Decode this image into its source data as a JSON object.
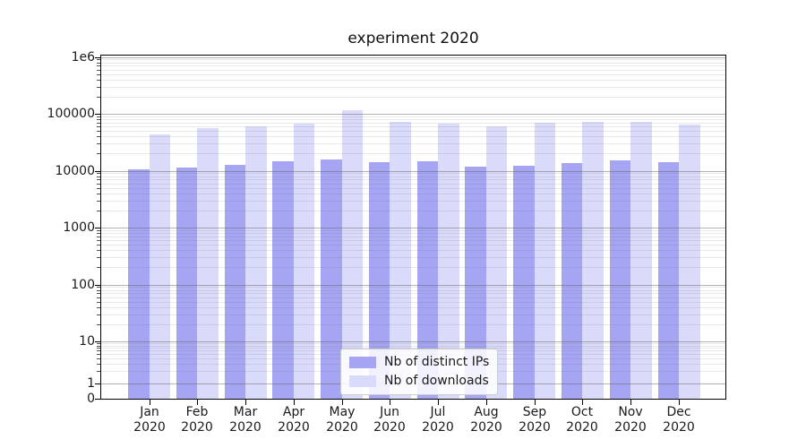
{
  "figure": {
    "background": "#ffffff",
    "text_color": "#1a1a1a"
  },
  "chart_data": {
    "type": "bar",
    "title": "experiment 2020",
    "categories": [
      "Jan",
      "Feb",
      "Mar",
      "Apr",
      "May",
      "Jun",
      "Jul",
      "Aug",
      "Sep",
      "Oct",
      "Nov",
      "Dec"
    ],
    "x_year_label": "2020",
    "series": [
      {
        "name": "Nb of distinct IPs",
        "color": "#a5a5f3",
        "values": [
          10700,
          11400,
          12800,
          14800,
          16000,
          14300,
          14500,
          12000,
          12300,
          13700,
          15100,
          14300
        ]
      },
      {
        "name": "Nb of downloads",
        "color": "#dadafb",
        "values": [
          44000,
          56000,
          60000,
          67000,
          116000,
          72000,
          68000,
          61000,
          70000,
          73000,
          72000,
          65000
        ]
      }
    ],
    "yscale": "symlog",
    "ylim": [
      0,
      1150000
    ],
    "yticks": [
      0,
      1,
      10,
      100,
      1000,
      10000,
      100000,
      1000000
    ],
    "ytick_labels": [
      "0",
      "1",
      "10",
      "100",
      "1000",
      "10000",
      "100000",
      "1e6"
    ],
    "grid": "horizontal major and minor, drawn over bars",
    "legend_position": "lower center",
    "grid_major_color": "#808080",
    "spine_color": "#000000"
  }
}
